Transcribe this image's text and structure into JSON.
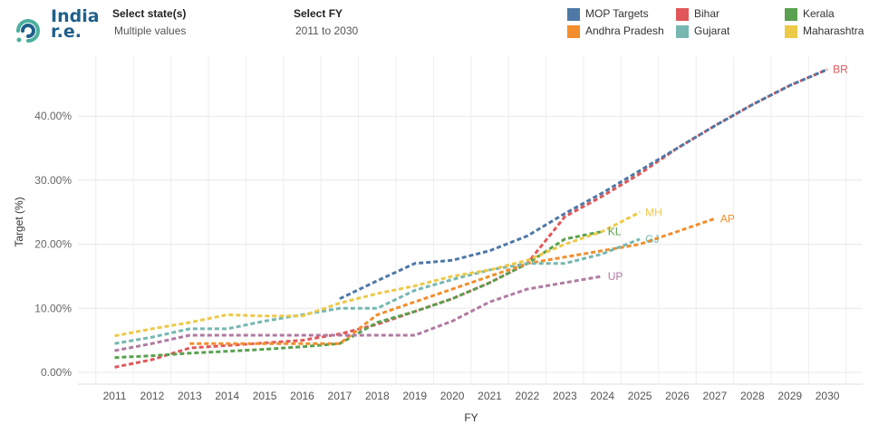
{
  "brand": {
    "line1": "India",
    "line2": "r.e."
  },
  "filters": [
    {
      "label": "Select state(s)",
      "value": "Multiple values"
    },
    {
      "label": "Select FY",
      "value": "2011 to 2030"
    }
  ],
  "legend": [
    {
      "name": "MOP Targets",
      "color": "#4e79a7"
    },
    {
      "name": "Bihar",
      "color": "#e15759"
    },
    {
      "name": "Kerala",
      "color": "#59a14f"
    },
    {
      "name": "Andhra Pradesh",
      "color": "#f28e2b"
    },
    {
      "name": "Gujarat",
      "color": "#76b7b2"
    },
    {
      "name": "Maharashtra",
      "color": "#edc948"
    }
  ],
  "chart_data": {
    "type": "line",
    "title": "",
    "xlabel": "FY",
    "ylabel": "Target (%)",
    "ylim": [
      0,
      48
    ],
    "yticks": [
      0,
      10,
      20,
      30,
      40
    ],
    "ytick_labels": [
      "0.00%",
      "10.00%",
      "20.00%",
      "30.00%",
      "40.00%"
    ],
    "x_categories": [
      "2011",
      "2012",
      "2013",
      "2014",
      "2015",
      "2016",
      "2017",
      "2018",
      "2019",
      "2020",
      "2021",
      "2022",
      "2023",
      "2024",
      "2025",
      "2026",
      "2027",
      "2028",
      "2029",
      "2030"
    ],
    "grid": true,
    "line_style": "dashed",
    "series": [
      {
        "name": "MOP Targets",
        "color": "#4e79a7",
        "label": "",
        "points": [
          [
            2017,
            11.5
          ],
          [
            2018,
            14.3
          ],
          [
            2019,
            17.0
          ],
          [
            2020,
            17.5
          ],
          [
            2021,
            19.0
          ],
          [
            2022,
            21.3
          ],
          [
            2023,
            24.8
          ],
          [
            2024,
            28.0
          ],
          [
            2025,
            31.5
          ],
          [
            2026,
            35.0
          ],
          [
            2027,
            38.5
          ],
          [
            2028,
            41.8
          ],
          [
            2029,
            44.8
          ],
          [
            2030,
            47.3
          ]
        ]
      },
      {
        "name": "Bihar",
        "color": "#e15759",
        "label": "BR",
        "points": [
          [
            2011,
            0.8
          ],
          [
            2012,
            2.0
          ],
          [
            2013,
            3.8
          ],
          [
            2014,
            4.2
          ],
          [
            2015,
            4.6
          ],
          [
            2016,
            5.0
          ],
          [
            2017,
            6.0
          ],
          [
            2018,
            7.5
          ],
          [
            2019,
            9.5
          ],
          [
            2020,
            11.5
          ],
          [
            2021,
            14.0
          ],
          [
            2022,
            17.0
          ],
          [
            2023,
            24.3
          ],
          [
            2024,
            27.5
          ],
          [
            2025,
            31.0
          ],
          [
            2026,
            35.0
          ],
          [
            2027,
            38.5
          ],
          [
            2028,
            41.8
          ],
          [
            2029,
            44.8
          ],
          [
            2030,
            47.3
          ]
        ]
      },
      {
        "name": "Kerala",
        "color": "#59a14f",
        "label": "KL",
        "points": [
          [
            2011,
            2.3
          ],
          [
            2012,
            2.6
          ],
          [
            2013,
            3.0
          ],
          [
            2014,
            3.3
          ],
          [
            2015,
            3.6
          ],
          [
            2016,
            4.0
          ],
          [
            2017,
            4.5
          ],
          [
            2018,
            7.8
          ],
          [
            2019,
            9.5
          ],
          [
            2020,
            11.5
          ],
          [
            2021,
            14.0
          ],
          [
            2022,
            17.0
          ],
          [
            2023,
            20.8
          ],
          [
            2024,
            22.0
          ]
        ]
      },
      {
        "name": "Andhra Pradesh",
        "color": "#f28e2b",
        "label": "AP",
        "points": [
          [
            2013,
            4.5
          ],
          [
            2014,
            4.5
          ],
          [
            2015,
            4.5
          ],
          [
            2016,
            4.5
          ],
          [
            2017,
            4.5
          ],
          [
            2018,
            9.0
          ],
          [
            2019,
            11.0
          ],
          [
            2020,
            13.0
          ],
          [
            2021,
            15.0
          ],
          [
            2022,
            17.0
          ],
          [
            2023,
            18.0
          ],
          [
            2024,
            19.0
          ],
          [
            2025,
            20.0
          ],
          [
            2026,
            22.0
          ],
          [
            2027,
            24.0
          ]
        ]
      },
      {
        "name": "Gujarat",
        "color": "#76b7b2",
        "label": "GJ",
        "points": [
          [
            2011,
            4.5
          ],
          [
            2012,
            5.5
          ],
          [
            2013,
            6.8
          ],
          [
            2014,
            6.8
          ],
          [
            2015,
            8.0
          ],
          [
            2016,
            9.0
          ],
          [
            2017,
            10.0
          ],
          [
            2018,
            10.0
          ],
          [
            2019,
            12.8
          ],
          [
            2020,
            14.5
          ],
          [
            2021,
            16.0
          ],
          [
            2022,
            17.0
          ],
          [
            2023,
            17.0
          ],
          [
            2024,
            18.5
          ],
          [
            2025,
            20.8
          ]
        ]
      },
      {
        "name": "Maharashtra",
        "color": "#edc948",
        "label": "MH",
        "points": [
          [
            2011,
            5.7
          ],
          [
            2012,
            6.8
          ],
          [
            2013,
            7.8
          ],
          [
            2014,
            9.0
          ],
          [
            2015,
            8.8
          ],
          [
            2016,
            8.8
          ],
          [
            2017,
            10.8
          ],
          [
            2018,
            12.3
          ],
          [
            2019,
            13.5
          ],
          [
            2020,
            15.0
          ],
          [
            2021,
            16.0
          ],
          [
            2022,
            17.5
          ],
          [
            2023,
            20.0
          ],
          [
            2024,
            22.0
          ],
          [
            2025,
            25.0
          ]
        ]
      },
      {
        "name": "Uttar Pradesh",
        "color": "#b07aa1",
        "label": "UP",
        "points": [
          [
            2011,
            3.4
          ],
          [
            2012,
            4.5
          ],
          [
            2013,
            5.8
          ],
          [
            2014,
            5.8
          ],
          [
            2015,
            5.8
          ],
          [
            2016,
            5.8
          ],
          [
            2017,
            5.8
          ],
          [
            2018,
            5.8
          ],
          [
            2019,
            5.8
          ],
          [
            2020,
            8.0
          ],
          [
            2021,
            11.0
          ],
          [
            2022,
            13.0
          ],
          [
            2023,
            14.0
          ],
          [
            2024,
            15.0
          ]
        ]
      }
    ]
  }
}
